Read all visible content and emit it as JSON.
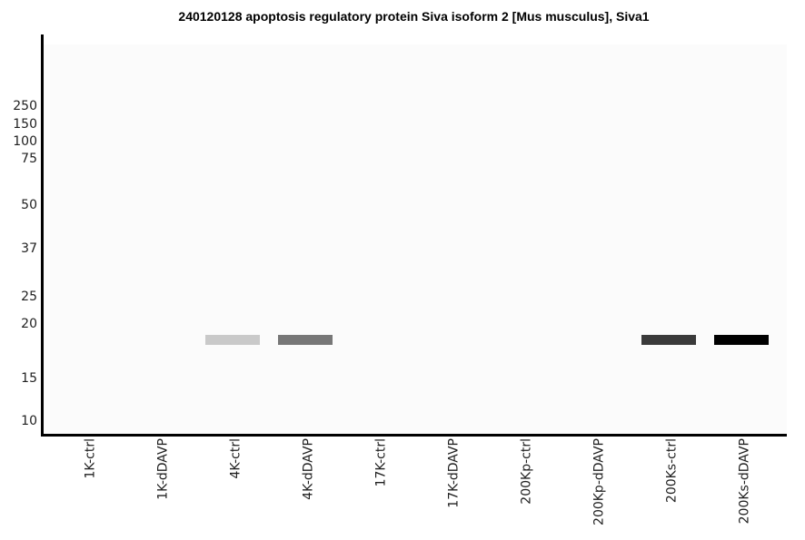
{
  "title": "240120128 apoptosis regulatory protein Siva isoform 2 [Mus musculus], Siva1",
  "chart_data": {
    "type": "heatmap",
    "subtype": "virtual-western-blot-gel",
    "title": "240120128 apoptosis regulatory protein Siva isoform 2 [Mus musculus], Siva1",
    "x_categories": [
      "1K-ctrl",
      "1K-dDAVP",
      "4K-ctrl",
      "4K-dDAVP",
      "17K-ctrl",
      "17K-dDAVP",
      "200Kp-ctrl",
      "200Kp-dDAVP",
      "200Ks-ctrl",
      "200Ks-dDAVP"
    ],
    "y_axis": {
      "unit": "kDa-molecular-weight-ladder",
      "ticks": [
        250,
        150,
        100,
        75,
        50,
        37,
        25,
        20,
        15,
        10
      ],
      "scale": "gel-migration-nonlinear"
    },
    "bands": [
      {
        "lane": "4K-ctrl",
        "lane_index": 2,
        "apparent_mw_kda": 18.4,
        "color": "#c9c9c9"
      },
      {
        "lane": "4K-dDAVP",
        "lane_index": 3,
        "apparent_mw_kda": 18.4,
        "color": "#777777"
      },
      {
        "lane": "200Ks-ctrl",
        "lane_index": 8,
        "apparent_mw_kda": 18.4,
        "color": "#3a3a3a"
      },
      {
        "lane": "200Ks-dDAVP",
        "lane_index": 9,
        "apparent_mw_kda": 18.4,
        "color": "#000000"
      }
    ],
    "legend": null,
    "grid": false,
    "plot_background": "#fbfbfb",
    "figure_background": "#ffffff",
    "axis_color": "#000000"
  }
}
